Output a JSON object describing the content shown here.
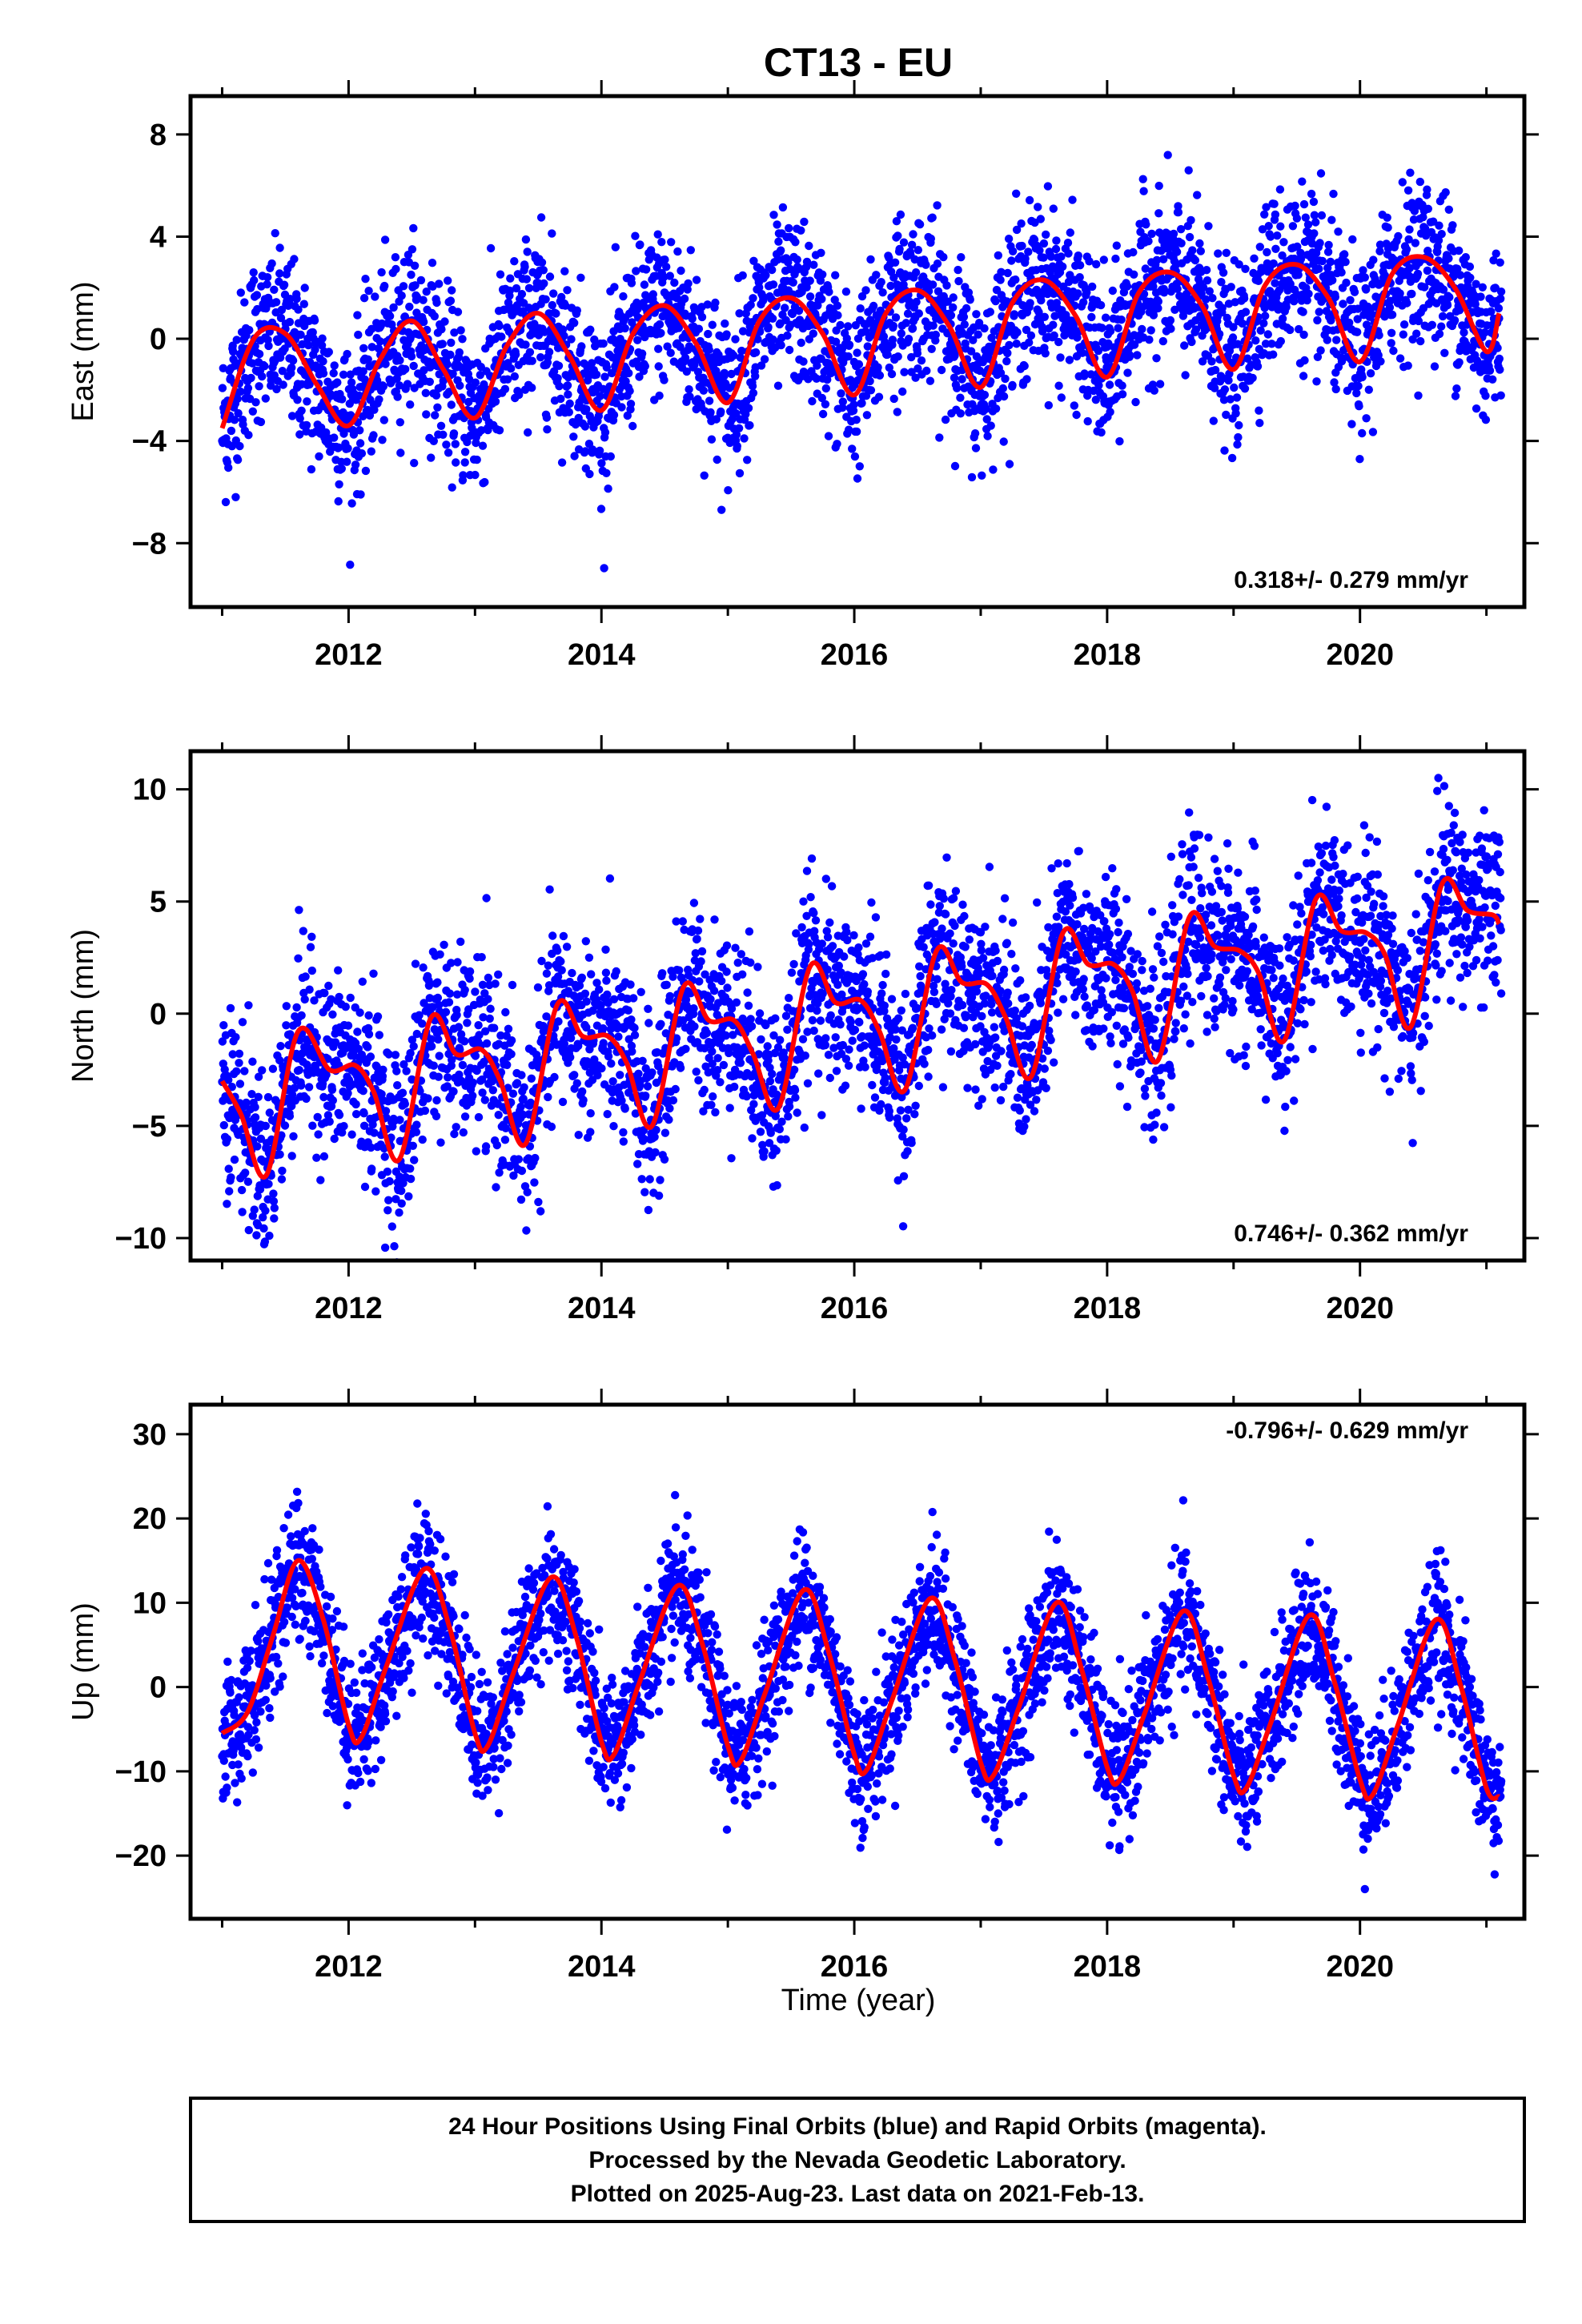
{
  "figure": {
    "title": "CT13 - EU",
    "xlabel": "Time (year)",
    "footer": [
      "24 Hour Positions Using Final Orbits (blue) and Rapid Orbits (magenta).",
      "Processed by the Nevada Geodetic Laboratory.",
      "Plotted on 2025-Aug-23. Last data on 2021-Feb-13."
    ],
    "colors": {
      "points": "#0000ff",
      "fit": "#ff0000",
      "frame": "#000000"
    }
  },
  "chart_data": [
    {
      "type": "scatter",
      "panel": "east",
      "ylabel": "East (mm)",
      "xlim": [
        2010.75,
        2021.3
      ],
      "ylim": [
        -10.5,
        9.5
      ],
      "xticks": [
        2012,
        2014,
        2016,
        2018,
        2020
      ],
      "yticks": [
        8,
        4,
        0,
        -4,
        -8
      ],
      "ytick_labels": [
        "8",
        "4",
        "0",
        "−4",
        "−8"
      ],
      "rate_label": "0.318+/- 0.279 mm/yr",
      "fit_curve": {
        "name": "",
        "x": [
          2011.0,
          2011.25,
          2011.5,
          2011.75,
          2012.0,
          2012.25,
          2012.5,
          2012.75,
          2013.0,
          2013.25,
          2013.5,
          2013.75,
          2014.0,
          2014.25,
          2014.5,
          2014.75,
          2015.0,
          2015.25,
          2015.5,
          2015.75,
          2016.0,
          2016.25,
          2016.5,
          2016.75,
          2017.0,
          2017.25,
          2017.5,
          2017.75,
          2018.0,
          2018.25,
          2018.5,
          2018.75,
          2019.0,
          2019.25,
          2019.5,
          2019.75,
          2020.0,
          2020.25,
          2020.5,
          2020.75,
          2021.0,
          2021.1
        ],
        "y": [
          -3.5,
          0.0,
          0.2,
          -1.8,
          -3.4,
          -0.8,
          0.7,
          -1.2,
          -3.1,
          -0.3,
          1.0,
          -0.7,
          -2.8,
          0.2,
          1.3,
          -0.2,
          -2.5,
          0.7,
          1.6,
          0.2,
          -2.2,
          1.0,
          1.9,
          0.5,
          -1.9,
          1.4,
          2.3,
          0.9,
          -1.5,
          1.8,
          2.6,
          1.3,
          -1.2,
          2.1,
          2.9,
          1.6,
          -0.9,
          2.5,
          3.2,
          2.0,
          -0.5,
          1.0
        ]
      },
      "points": {
        "name": "",
        "count_estimate": 3500,
        "amplitude_mm": 2.0,
        "scatter_sd_mm": 1.6,
        "annual_peak_fraction": 0.35,
        "trend_mm_per_yr": 0.318
      }
    },
    {
      "type": "scatter",
      "panel": "north",
      "ylabel": "North (mm)",
      "xlim": [
        2010.75,
        2021.3
      ],
      "ylim": [
        -11.0,
        11.7
      ],
      "xticks": [
        2012,
        2014,
        2016,
        2018,
        2020
      ],
      "yticks": [
        10,
        5,
        0,
        -5,
        -10
      ],
      "ytick_labels": [
        "10",
        "5",
        "0",
        "−5",
        "−10"
      ],
      "rate_label": "0.746+/- 0.362 mm/yr",
      "fit_curve": {
        "name": "",
        "x": [
          2011.0,
          2011.15,
          2011.35,
          2011.6,
          2011.85,
          2012.05,
          2012.2,
          2012.4,
          2012.65,
          2012.85,
          2013.05,
          2013.2,
          2013.4,
          2013.65,
          2013.85,
          2014.05,
          2014.2,
          2014.4,
          2014.65,
          2014.85,
          2015.05,
          2015.2,
          2015.4,
          2015.65,
          2015.85,
          2016.05,
          2016.2,
          2016.4,
          2016.65,
          2016.85,
          2017.05,
          2017.2,
          2017.4,
          2017.65,
          2017.85,
          2018.05,
          2018.2,
          2018.4,
          2018.65,
          2018.85,
          2019.05,
          2019.2,
          2019.4,
          2019.65,
          2019.85,
          2020.05,
          2020.2,
          2020.4,
          2020.65,
          2020.85,
          2021.05,
          2021.1
        ],
        "y": [
          -3.0,
          -4.5,
          -7.2,
          -0.8,
          -2.5,
          -2.3,
          -3.5,
          -6.5,
          -0.2,
          -1.8,
          -1.6,
          -3.0,
          -5.8,
          0.4,
          -1.0,
          -1.0,
          -2.2,
          -5.0,
          1.2,
          -0.3,
          -0.3,
          -1.8,
          -4.2,
          2.1,
          0.5,
          0.6,
          -0.8,
          -3.4,
          2.8,
          1.4,
          1.3,
          -0.2,
          -2.8,
          3.6,
          2.2,
          2.2,
          1.0,
          -2.1,
          4.3,
          3.0,
          2.8,
          1.8,
          -1.2,
          5.1,
          3.7,
          3.6,
          2.6,
          -0.6,
          5.8,
          4.6,
          4.4,
          4.0
        ]
      },
      "points": {
        "name": "",
        "count_estimate": 3500,
        "amplitude_mm": 3.3,
        "scatter_sd_mm": 2.0,
        "annual_peak_fraction": 0.67,
        "trend_mm_per_yr": 0.746
      }
    },
    {
      "type": "scatter",
      "panel": "up",
      "ylabel": "Up (mm)",
      "xlim": [
        2010.75,
        2021.3
      ],
      "ylim": [
        -27.5,
        33.5
      ],
      "xticks": [
        2012,
        2014,
        2016,
        2018,
        2020
      ],
      "yticks": [
        30,
        20,
        10,
        0,
        -10,
        -20
      ],
      "ytick_labels": [
        "30",
        "20",
        "10",
        "0",
        "−10",
        "−20"
      ],
      "rate_label": "-0.796+/- 0.629 mm/yr",
      "fit_curve": {
        "name": "",
        "x": [
          2011.0,
          2011.2,
          2011.4,
          2011.6,
          2011.8,
          2012.0,
          2012.1,
          2012.3,
          2012.6,
          2012.8,
          2013.0,
          2013.1,
          2013.3,
          2013.6,
          2013.8,
          2014.0,
          2014.1,
          2014.3,
          2014.6,
          2014.8,
          2015.0,
          2015.1,
          2015.3,
          2015.6,
          2015.8,
          2016.0,
          2016.1,
          2016.3,
          2016.6,
          2016.8,
          2017.0,
          2017.1,
          2017.3,
          2017.6,
          2017.8,
          2018.0,
          2018.1,
          2018.3,
          2018.6,
          2018.8,
          2019.0,
          2019.1,
          2019.3,
          2019.6,
          2019.8,
          2020.0,
          2020.1,
          2020.3,
          2020.6,
          2020.8,
          2021.0,
          2021.1
        ],
        "y": [
          -5.5,
          -3.0,
          6.0,
          15.0,
          8.0,
          -4.5,
          -6.0,
          2.5,
          14.0,
          7.0,
          -5.5,
          -7.0,
          1.5,
          13.0,
          6.0,
          -6.5,
          -8.0,
          0.5,
          12.0,
          5.0,
          -7.0,
          -8.8,
          -0.5,
          11.5,
          4.0,
          -8.0,
          -9.8,
          -1.5,
          10.5,
          3.0,
          -9.0,
          -10.5,
          -2.5,
          10.0,
          2.0,
          -9.5,
          -11.0,
          -3.0,
          9.0,
          1.0,
          -10.5,
          -12.0,
          -4.0,
          8.5,
          0.5,
          -11.0,
          -12.8,
          -4.5,
          8.0,
          0.0,
          -12.0,
          -13.0
        ]
      },
      "points": {
        "name": "",
        "count_estimate": 3500,
        "amplitude_mm": 12.0,
        "scatter_sd_mm": 4.0,
        "annual_peak_fraction": 0.6,
        "trend_mm_per_yr": -0.796
      }
    }
  ]
}
